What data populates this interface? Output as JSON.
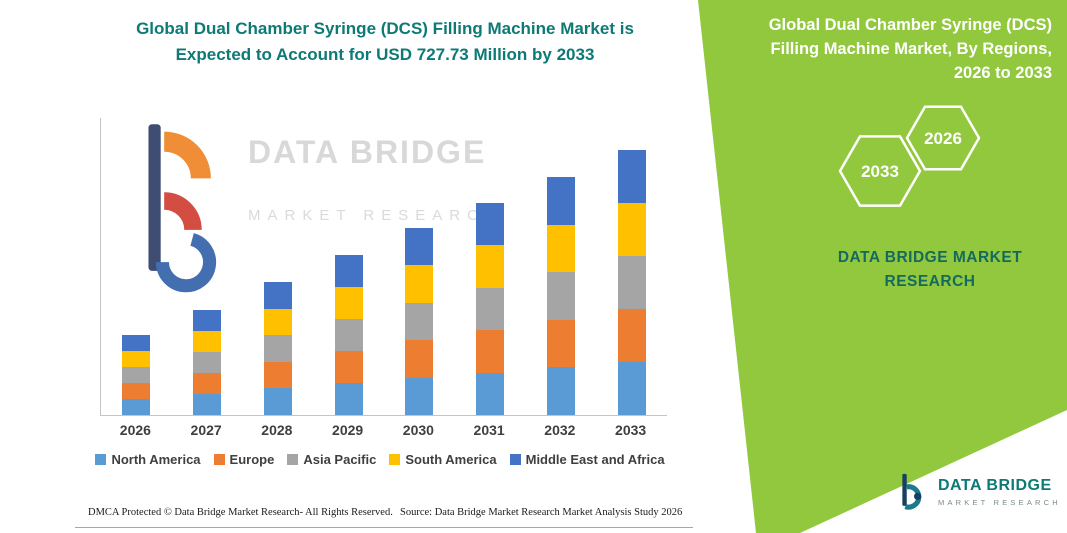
{
  "left_panel": {
    "title_lines": [
      "Global Dual Chamber Syringe (DCS) Filling Machine Market is",
      "Expected to Account for USD 727.73 Million by 2033"
    ],
    "watermark": {
      "line1": "DATA BRIDGE",
      "line2": "MARKET RESEARCH"
    },
    "footer": {
      "dmca": "DMCA Protected © Data Bridge Market Research-  All Rights Reserved.",
      "source": "Source: Data Bridge Market Research  Market Analysis Study 2026"
    }
  },
  "right_panel": {
    "title_lines": [
      "Global Dual Chamber Syringe (DCS)",
      "Filling Machine Market, By Regions,",
      "2026 to 2033"
    ],
    "hexagons": [
      {
        "year": "2033"
      },
      {
        "year": "2026"
      }
    ],
    "brand_lines": [
      "DATA BRIDGE MARKET",
      "RESEARCH"
    ],
    "background_color": "#92c83e"
  },
  "corner_logo": {
    "name": "DATA BRIDGE",
    "tagline": "MARKET RESEARCH"
  },
  "chart_data": {
    "type": "bar",
    "stacked": true,
    "unit": "USD Million",
    "title": "Global Dual Chamber Syringe (DCS) Filling Machine Market is Expected to Account for USD 727.73 Million by 2033",
    "categories": [
      "2026",
      "2027",
      "2028",
      "2029",
      "2030",
      "2031",
      "2032",
      "2033"
    ],
    "series": [
      {
        "name": "North America",
        "color": "#5B9BD5",
        "values": [
          44.0,
          57.6,
          73.0,
          87.8,
          102.6,
          116.4,
          130.6,
          145.5
        ]
      },
      {
        "name": "Europe",
        "color": "#ED7D31",
        "values": [
          44.0,
          57.6,
          73.0,
          87.8,
          102.6,
          116.4,
          130.6,
          145.5
        ]
      },
      {
        "name": "Asia Pacific",
        "color": "#A5A5A5",
        "values": [
          44.0,
          57.6,
          73.0,
          87.8,
          102.6,
          116.4,
          130.6,
          145.5
        ]
      },
      {
        "name": "South America",
        "color": "#FFC000",
        "values": [
          44.0,
          57.6,
          73.0,
          87.8,
          102.6,
          116.4,
          130.6,
          145.5
        ]
      },
      {
        "name": "Middle East and Africa",
        "color": "#4472C4",
        "values": [
          44.0,
          57.6,
          73.0,
          87.8,
          102.6,
          116.4,
          130.6,
          145.73
        ]
      }
    ],
    "totals": [
      220.0,
      288.0,
      365.0,
      439.0,
      513.0,
      582.0,
      653.0,
      727.73
    ],
    "xlabel": "",
    "ylabel": "",
    "ylim": [
      0,
      750
    ],
    "grid": false,
    "legend_position": "bottom"
  }
}
